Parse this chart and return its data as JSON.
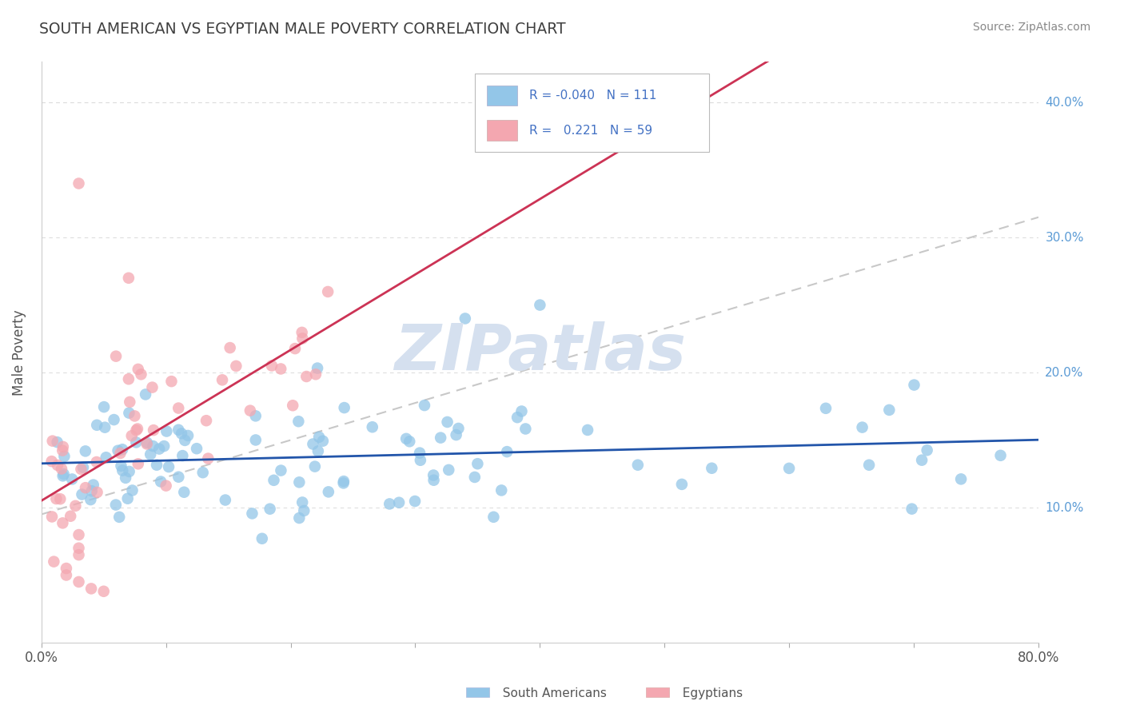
{
  "title": "SOUTH AMERICAN VS EGYPTIAN MALE POVERTY CORRELATION CHART",
  "source": "Source: ZipAtlas.com",
  "ylabel": "Male Poverty",
  "xlim": [
    0.0,
    0.8
  ],
  "ylim": [
    0.0,
    0.43
  ],
  "ytick_positions": [
    0.1,
    0.2,
    0.3,
    0.4
  ],
  "ytick_labels": [
    "10.0%",
    "20.0%",
    "30.0%",
    "40.0%"
  ],
  "sa_color": "#93C6E8",
  "eg_color": "#F4A7B0",
  "sa_line_color": "#2255AA",
  "eg_line_color": "#CC3355",
  "dash_line_color": "#C8C8C8",
  "watermark_text": "ZIPatlas",
  "watermark_color": "#D5E0EF",
  "background_color": "#FFFFFF",
  "grid_color": "#DDDDDD",
  "title_color": "#404040",
  "legend_text_color": "#4472C4",
  "source_color": "#888888"
}
